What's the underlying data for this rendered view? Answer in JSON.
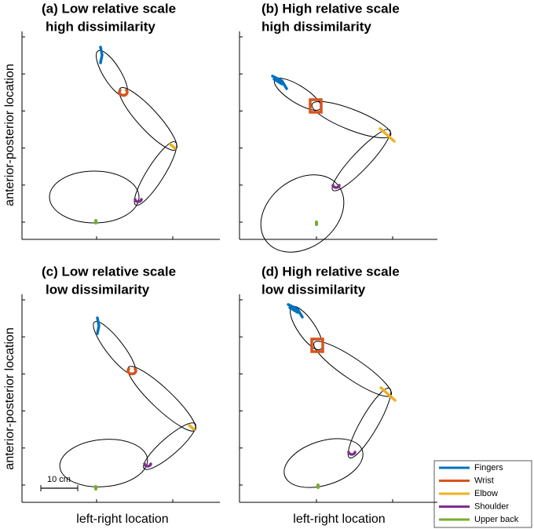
{
  "panels": [
    {
      "title": "(a) Low relative scale",
      "subtitle": "high dissimilarity"
    },
    {
      "title": "(b) High relative scale",
      "subtitle": "high dissimilarity"
    },
    {
      "title": "(c) Low relative scale",
      "subtitle": "low dissimilarity"
    },
    {
      "title": "(d) High relative scale",
      "subtitle": "low dissimilarity"
    }
  ],
  "y_label": "anterior-posterior location",
  "x_label": "left-right location",
  "scale_bar": "10 cm",
  "legend": {
    "items": [
      {
        "name": "Fingers",
        "color": "#0072bd"
      },
      {
        "name": "Wrist",
        "color": "#d95319"
      },
      {
        "name": "Elbow",
        "color": "#edb120"
      },
      {
        "name": "Shoulder",
        "color": "#7e2f8e"
      },
      {
        "name": "Upper back",
        "color": "#77ac30"
      }
    ]
  }
}
